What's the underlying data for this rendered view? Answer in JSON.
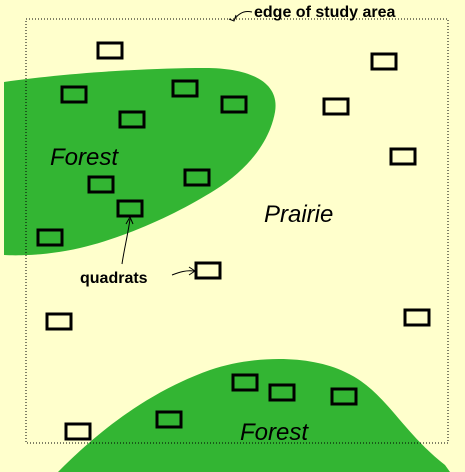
{
  "labels": {
    "edge_of_study_area": "edge of study area",
    "forest_top": "Forest",
    "prairie": "Prairie",
    "forest_bottom": "Forest",
    "quadrats": "quadrats"
  },
  "colors": {
    "prairie_fill": "#ffffcc",
    "forest_fill": "#33b533",
    "boundary": "#000000"
  }
}
